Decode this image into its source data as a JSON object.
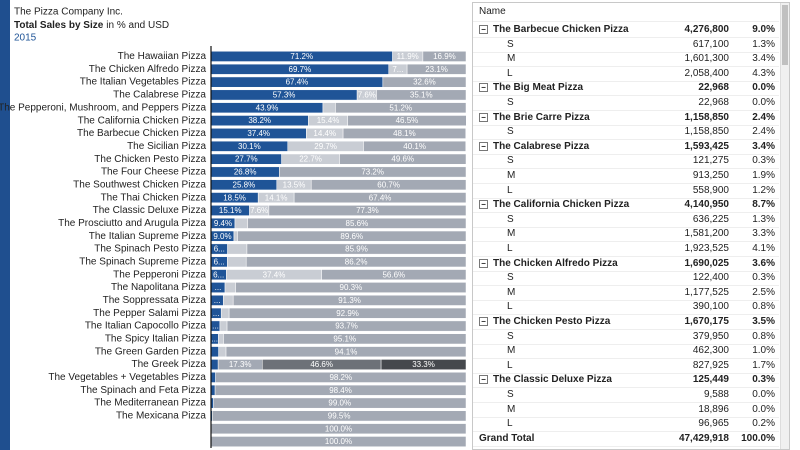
{
  "chart_data": {
    "type": "bar",
    "orientation": "horizontal",
    "stacked": true,
    "title": "The Pizza Company Inc.",
    "subtitle": [
      "Total Sales by Size",
      "in % and USD"
    ],
    "period": "2015",
    "xlim": [
      0,
      100
    ],
    "categories": [
      "The Hawaiian Pizza",
      "The Chicken Alfredo Pizza",
      "The Italian Vegetables Pizza",
      "The Calabrese Pizza",
      "The Pepperoni, Mushroom, and Peppers Pizza",
      "The California Chicken Pizza",
      "The Barbecue Chicken Pizza",
      "The Sicilian Pizza",
      "The Chicken Pesto Pizza",
      "The Four Cheese Pizza",
      "The Southwest Chicken Pizza",
      "The Thai Chicken Pizza",
      "The Classic Deluxe Pizza",
      "The Prosciutto and Arugula Pizza",
      "The Italian Supreme Pizza",
      "The Spinach Pesto Pizza",
      "The Spinach Supreme Pizza",
      "The Pepperoni Pizza",
      "The Napolitana Pizza",
      "The Soppressata Pizza",
      "The Pepper Salami Pizza",
      "The Italian Capocollo Pizza",
      "The Spicy Italian Pizza",
      "The Green Garden Pizza",
      "The Greek Pizza",
      "The Vegetables + Vegetables Pizza",
      "The Spinach and Feta Pizza",
      "The Mediterranean Pizza",
      "The Mexicana Pizza",
      null,
      null
    ],
    "series": [
      {
        "color": "#1f5497",
        "values": [
          71.2,
          69.7,
          67.4,
          57.3,
          43.9,
          38.2,
          37.4,
          30.1,
          27.7,
          26.8,
          25.8,
          18.5,
          15.1,
          9.4,
          9.0,
          6.5,
          6.4,
          6.0,
          5.5,
          4.8,
          4.0,
          3.5,
          2.9,
          3.0,
          2.8,
          1.8,
          1.6,
          1.0,
          0.5,
          null,
          null
        ],
        "value_labels": [
          "71.2%",
          "69.7%",
          "67.4%",
          "57.3%",
          "43.9%",
          "38.2%",
          "37.4%",
          "30.1%",
          "27.7%",
          "26.8%",
          "25.8%",
          "18.5%",
          "15.1%",
          "9.4%",
          "9.0%",
          "6...",
          "6...",
          "6...",
          "...",
          "...",
          "...",
          "...",
          "...",
          null,
          null,
          null,
          null,
          null,
          null,
          null,
          null
        ]
      },
      {
        "color": "#c9cdd4",
        "values": [
          11.9,
          7.2,
          null,
          7.6,
          4.9,
          15.4,
          14.4,
          29.7,
          22.7,
          null,
          13.5,
          14.1,
          7.6,
          5.0,
          1.4,
          7.6,
          7.4,
          37.4,
          4.2,
          3.9,
          3.1,
          2.8,
          2.0,
          2.9,
          null,
          null,
          null,
          null,
          null,
          null,
          null
        ],
        "value_labels": [
          "11.9%",
          "7...",
          null,
          "7.6%",
          null,
          "15.4%",
          "14.4%",
          "29.7%",
          "22.7%",
          null,
          "13.5%",
          "14.1%",
          "7.6%",
          null,
          null,
          null,
          null,
          "37.4%",
          null,
          null,
          null,
          null,
          null,
          null,
          null,
          null,
          null,
          null,
          null,
          null,
          null
        ]
      },
      {
        "color": "#a3a9b4",
        "values": [
          16.9,
          23.1,
          32.6,
          35.1,
          51.2,
          46.5,
          48.1,
          40.1,
          49.6,
          73.2,
          60.7,
          67.4,
          77.3,
          85.6,
          89.6,
          85.9,
          86.2,
          56.6,
          90.3,
          91.3,
          92.9,
          93.7,
          95.1,
          94.1,
          17.3,
          98.2,
          98.4,
          99.0,
          99.5,
          100.0,
          100.0
        ],
        "value_labels": [
          "16.9%",
          "23.1%",
          "32.6%",
          "35.1%",
          "51.2%",
          "46.5%",
          "48.1%",
          "40.1%",
          "49.6%",
          "73.2%",
          "60.7%",
          "67.4%",
          "77.3%",
          "85.6%",
          "89.6%",
          "85.9%",
          "86.2%",
          "56.6%",
          "90.3%",
          "91.3%",
          "92.9%",
          "93.7%",
          "95.1%",
          "94.1%",
          "17.3%",
          "98.2%",
          "98.4%",
          "99.0%",
          "99.5%",
          "100.0%",
          "100.0%"
        ]
      },
      {
        "color": "#6d7178",
        "values": [
          null,
          null,
          null,
          null,
          null,
          null,
          null,
          null,
          null,
          null,
          null,
          null,
          null,
          null,
          null,
          null,
          null,
          null,
          null,
          null,
          null,
          null,
          null,
          null,
          46.6,
          null,
          null,
          null,
          null,
          null,
          null
        ],
        "value_labels": [
          null,
          null,
          null,
          null,
          null,
          null,
          null,
          null,
          null,
          null,
          null,
          null,
          null,
          null,
          null,
          null,
          null,
          null,
          null,
          null,
          null,
          null,
          null,
          null,
          "46.6%",
          null,
          null,
          null,
          null,
          null,
          null
        ]
      },
      {
        "color": "#45484d",
        "values": [
          null,
          null,
          null,
          null,
          null,
          null,
          null,
          null,
          null,
          null,
          null,
          null,
          null,
          null,
          null,
          null,
          null,
          null,
          null,
          null,
          null,
          null,
          null,
          null,
          33.3,
          null,
          null,
          null,
          null,
          null,
          null
        ],
        "value_labels": [
          null,
          null,
          null,
          null,
          null,
          null,
          null,
          null,
          null,
          null,
          null,
          null,
          null,
          null,
          null,
          null,
          null,
          null,
          null,
          null,
          null,
          null,
          null,
          null,
          "33.3%",
          null,
          null,
          null,
          null,
          null,
          null
        ]
      }
    ]
  },
  "table": {
    "header": "Name",
    "rows": [
      {
        "cells": [
          "The Barbecue Chicken Pizza",
          "4,276,800",
          "9.0%"
        ],
        "group": true
      },
      {
        "cells": [
          "S",
          "617,100",
          "1.3%"
        ]
      },
      {
        "cells": [
          "M",
          "1,601,300",
          "3.4%"
        ]
      },
      {
        "cells": [
          "L",
          "2,058,400",
          "4.3%"
        ]
      },
      {
        "cells": [
          "The Big Meat Pizza",
          "22,968",
          "0.0%"
        ],
        "group": true
      },
      {
        "cells": [
          "S",
          "22,968",
          "0.0%"
        ]
      },
      {
        "cells": [
          "The Brie Carre Pizza",
          "1,158,850",
          "2.4%"
        ],
        "group": true
      },
      {
        "cells": [
          "S",
          "1,158,850",
          "2.4%"
        ]
      },
      {
        "cells": [
          "The Calabrese Pizza",
          "1,593,425",
          "3.4%"
        ],
        "group": true
      },
      {
        "cells": [
          "S",
          "121,275",
          "0.3%"
        ]
      },
      {
        "cells": [
          "M",
          "913,250",
          "1.9%"
        ]
      },
      {
        "cells": [
          "L",
          "558,900",
          "1.2%"
        ]
      },
      {
        "cells": [
          "The California Chicken Pizza",
          "4,140,950",
          "8.7%"
        ],
        "group": true
      },
      {
        "cells": [
          "S",
          "636,225",
          "1.3%"
        ]
      },
      {
        "cells": [
          "M",
          "1,581,200",
          "3.3%"
        ]
      },
      {
        "cells": [
          "L",
          "1,923,525",
          "4.1%"
        ]
      },
      {
        "cells": [
          "The Chicken Alfredo Pizza",
          "1,690,025",
          "3.6%"
        ],
        "group": true
      },
      {
        "cells": [
          "S",
          "122,400",
          "0.3%"
        ]
      },
      {
        "cells": [
          "M",
          "1,177,525",
          "2.5%"
        ]
      },
      {
        "cells": [
          "L",
          "390,100",
          "0.8%"
        ]
      },
      {
        "cells": [
          "The Chicken Pesto Pizza",
          "1,670,175",
          "3.5%"
        ],
        "group": true
      },
      {
        "cells": [
          "S",
          "379,950",
          "0.8%"
        ]
      },
      {
        "cells": [
          "M",
          "462,300",
          "1.0%"
        ]
      },
      {
        "cells": [
          "L",
          "827,925",
          "1.7%"
        ]
      },
      {
        "cells": [
          "The Classic Deluxe Pizza",
          "125,449",
          "0.3%"
        ],
        "group": true
      },
      {
        "cells": [
          "S",
          "9,588",
          "0.0%"
        ]
      },
      {
        "cells": [
          "M",
          "18,896",
          "0.0%"
        ]
      },
      {
        "cells": [
          "L",
          "96,965",
          "0.2%"
        ]
      },
      {
        "cells": [
          "Grand Total",
          "47,429,918",
          "100.0%"
        ],
        "group": true,
        "total": true
      }
    ]
  }
}
